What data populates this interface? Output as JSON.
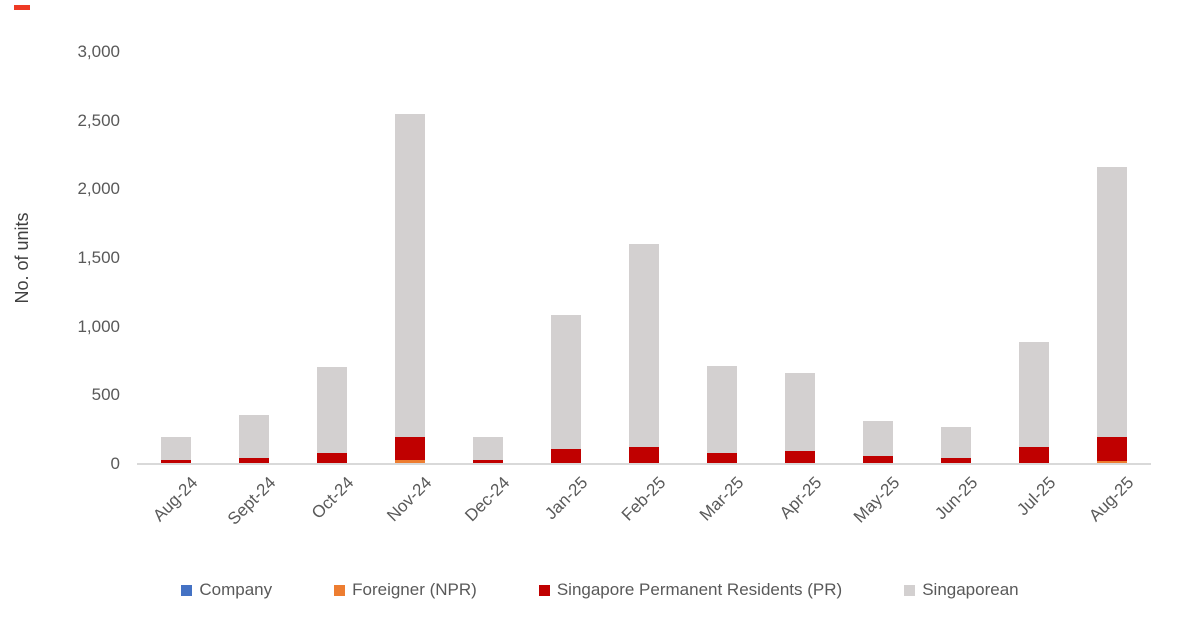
{
  "decorations": {
    "top_left_red_dash_color": "#ee3a24"
  },
  "chart_data": {
    "type": "bar",
    "stacked": true,
    "title": "",
    "xlabel": "",
    "ylabel": "No. of units",
    "ylim": [
      0,
      3000
    ],
    "grid": false,
    "legend_position": "bottom",
    "axis_line_color": "#d9d9d9",
    "text_color": "#595959",
    "ytick_values": [
      0,
      500,
      1000,
      1500,
      2000,
      2500,
      3000
    ],
    "ytick_labels": [
      "0",
      "500",
      "1,000",
      "1,500",
      "2,000",
      "2,500",
      "3,000"
    ],
    "categories": [
      "Aug-24",
      "Sept-24",
      "Oct-24",
      "Nov-24",
      "Dec-24",
      "Jan-25",
      "Feb-25",
      "Mar-25",
      "Apr-25",
      "May-25",
      "Jun-25",
      "Jul-25",
      "Aug-25"
    ],
    "series": [
      {
        "name": "Company",
        "color": "#4472c4",
        "values": [
          2,
          2,
          2,
          5,
          2,
          2,
          2,
          2,
          2,
          2,
          2,
          2,
          5
        ]
      },
      {
        "name": "Foreigner (NPR)",
        "color": "#ed7d31",
        "values": [
          5,
          5,
          5,
          25,
          5,
          5,
          5,
          5,
          5,
          5,
          5,
          5,
          20
        ]
      },
      {
        "name": "Singapore Permanent Residents (PR)",
        "color": "#c00000",
        "values": [
          20,
          35,
          70,
          170,
          20,
          100,
          115,
          75,
          85,
          50,
          35,
          120,
          175
        ]
      },
      {
        "name": "Singaporean",
        "color": "#d3d0d0",
        "values": [
          170,
          315,
          630,
          2350,
          170,
          975,
          1480,
          635,
          570,
          255,
          225,
          760,
          1960
        ]
      }
    ],
    "totals": [
      197,
      357,
      707,
      2550,
      197,
      1082,
      1602,
      717,
      662,
      312,
      267,
      887,
      2160
    ]
  }
}
